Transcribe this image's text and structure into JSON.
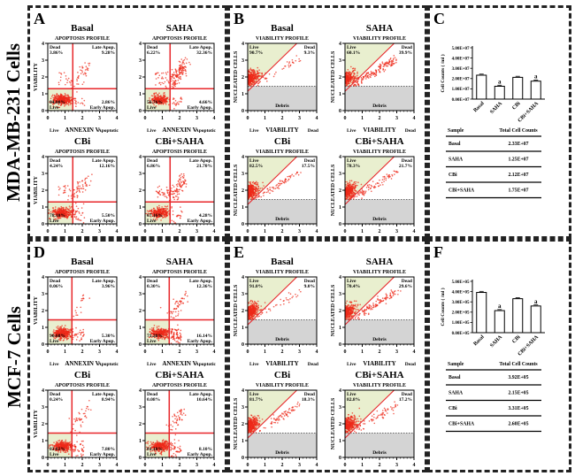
{
  "row_labels": [
    "MDA-MB-231 Cells",
    "MCF-7 Cells"
  ],
  "colors": {
    "dots": "#ee2a1a",
    "quad_line": "#e8262a",
    "live_fill": "#e9efcf",
    "debris_fill": "#d4d4d4",
    "diag_line": "#e8262a",
    "bar_fill": "#ffffff"
  },
  "chart_data": [
    {
      "id": "A",
      "panel_letter": "A",
      "type": "scatter",
      "profile_title": "APOPTOSIS PROFILE",
      "xlabel": "ANNEXIN V",
      "xlabel_left": "Live",
      "xlabel_right": "Apoptotic",
      "ylabel": "VIABILITY",
      "xlim": [
        0,
        4
      ],
      "ylim": [
        0,
        4
      ],
      "xticks": [
        "0",
        "1",
        "2",
        "3",
        "4"
      ],
      "yticks": [
        "0",
        "1",
        "2",
        "3",
        "4"
      ],
      "quadrant_labels": [
        "Dead",
        "Late Apop.",
        "Live",
        "Early Apop."
      ],
      "plots": [
        {
          "title": "Basal",
          "dead": "3.86%",
          "late": "9.28%",
          "live": "84.00%",
          "early": "2.86%"
        },
        {
          "title": "SAHA",
          "dead": "6.22%",
          "late": "32.36%",
          "live": "56.76%",
          "early": "4.66%"
        },
        {
          "title": "CBi",
          "dead": "4.24%",
          "late": "12.16%",
          "live": "78.10%",
          "early": "5.50%"
        },
        {
          "title": "CBi+SAHA",
          "dead": "6.86%",
          "late": "21.70%",
          "live": "67.16%",
          "early": "4.28%"
        }
      ]
    },
    {
      "id": "B",
      "panel_letter": "B",
      "type": "scatter",
      "profile_title": "VIABILITY PROFILE",
      "xlabel": "VIABILITY",
      "xlabel_left": "Live",
      "xlabel_right": "Dead",
      "ylabel": "NUCLEATED CELLS",
      "xlim": [
        0,
        4
      ],
      "ylim": [
        0,
        4
      ],
      "xticks": [
        "0",
        "1",
        "2",
        "3",
        "4"
      ],
      "yticks": [
        "0",
        "1",
        "2",
        "3",
        "4"
      ],
      "region_labels": [
        "Live",
        "Dead",
        "Debris"
      ],
      "plots": [
        {
          "title": "Basal",
          "live": "90.7%",
          "dead": "9.3%"
        },
        {
          "title": "SAHA",
          "live": "60.1%",
          "dead": "39.9%"
        },
        {
          "title": "CBi",
          "live": "82.5%",
          "dead": "17.5%"
        },
        {
          "title": "CBi+SAHA",
          "live": "78.3%",
          "dead": "21.7%"
        }
      ]
    },
    {
      "id": "C",
      "panel_letter": "C",
      "type": "bar",
      "ylabel": "Cell Counts ( /ml )",
      "ylim": [
        0,
        50000000
      ],
      "yticks": [
        "0.00E+07",
        "1.00E+07",
        "2.00E+07",
        "3.00E+07",
        "4.00E+07",
        "5.00E+07"
      ],
      "categories": [
        "Basal",
        "SAHA",
        "CBi",
        "CBi+SAHA"
      ],
      "values": [
        23300000,
        12500000,
        21200000,
        17500000
      ],
      "annotations": [
        "",
        "a",
        "",
        "a"
      ],
      "table": {
        "headers": [
          "Sample",
          "Total Cell Counts"
        ],
        "rows": [
          [
            "Basal",
            "2.33E+07"
          ],
          [
            "SAHA",
            "1.25E+07"
          ],
          [
            "CBi",
            "2.12E+07"
          ],
          [
            "CBi+SAHA",
            "1.75E+07"
          ]
        ]
      }
    },
    {
      "id": "D",
      "panel_letter": "D",
      "type": "scatter",
      "profile_title": "APOPTOSIS PROFILE",
      "xlabel": "ANNEXIN V",
      "xlabel_left": "Live",
      "xlabel_right": "Apoptotic",
      "ylabel": "VIABILITY",
      "xlim": [
        0,
        4
      ],
      "ylim": [
        0,
        4
      ],
      "xticks": [
        "0",
        "1",
        "2",
        "3",
        "4"
      ],
      "yticks": [
        "0",
        "1",
        "2",
        "3",
        "4"
      ],
      "quadrant_labels": [
        "Dead",
        "Late Apop.",
        "Live",
        "Early Apop."
      ],
      "plots": [
        {
          "title": "Basal",
          "dead": "0.06%",
          "late": "3.96%",
          "live": "90.68%",
          "early": "5.30%"
        },
        {
          "title": "SAHA",
          "dead": "0.30%",
          "late": "12.36%",
          "live": "71.20%",
          "early": "16.14%"
        },
        {
          "title": "CBi",
          "dead": "0.24%",
          "late": "8.94%",
          "live": "83.02%",
          "early": "7.80%"
        },
        {
          "title": "CBi+SAHA",
          "dead": "0.08%",
          "late": "10.64%",
          "live": "81.18%",
          "early": "8.10%"
        }
      ]
    },
    {
      "id": "E",
      "panel_letter": "E",
      "type": "scatter",
      "profile_title": "VIABILITY PROFILE",
      "xlabel": "VIABILITY",
      "xlabel_left": "Live",
      "xlabel_right": "Dead",
      "ylabel": "NUCLEATED CELLS",
      "xlim": [
        0,
        4
      ],
      "ylim": [
        0,
        4
      ],
      "xticks": [
        "0",
        "1",
        "2",
        "3",
        "4"
      ],
      "yticks": [
        "0",
        "1",
        "2",
        "3",
        "4"
      ],
      "region_labels": [
        "Live",
        "Dead",
        "Debris"
      ],
      "plots": [
        {
          "title": "Basal",
          "live": "91.0%",
          "dead": "9.0%"
        },
        {
          "title": "SAHA",
          "live": "70.4%",
          "dead": "29.6%"
        },
        {
          "title": "CBi",
          "live": "81.7%",
          "dead": "18.3%"
        },
        {
          "title": "CBi+SAHA",
          "live": "82.8%",
          "dead": "17.2%"
        }
      ]
    },
    {
      "id": "F",
      "panel_letter": "F",
      "type": "bar",
      "ylabel": "Cell Counts ( /ml )",
      "ylim": [
        0,
        500000
      ],
      "yticks": [
        "0.00E+05",
        "1.00E+05",
        "2.00E+05",
        "3.00E+05",
        "4.00E+05",
        "5.00E+05"
      ],
      "categories": [
        "Basal",
        "SAHA",
        "CBi",
        "CBi+SAHA"
      ],
      "values": [
        392000,
        215000,
        331000,
        260000
      ],
      "annotations": [
        "",
        "a",
        "",
        "a"
      ],
      "table": {
        "headers": [
          "Sample",
          "Total Cell Counts"
        ],
        "rows": [
          [
            "Basal",
            "3.92E+05"
          ],
          [
            "SAHA",
            "2.15E+05"
          ],
          [
            "CBi",
            "3.31E+05"
          ],
          [
            "CBi+SAHA",
            "2.60E+05"
          ]
        ]
      }
    }
  ]
}
